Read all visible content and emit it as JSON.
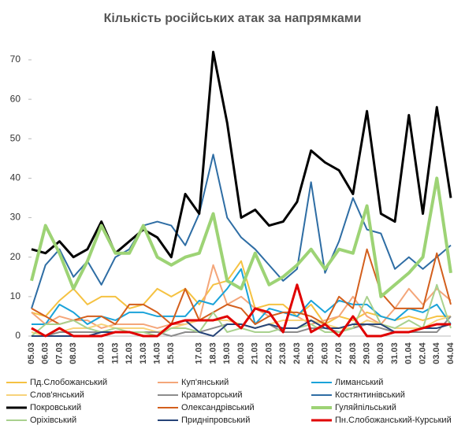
{
  "chart_data": {
    "type": "line",
    "title": "Кількість російських атак за напрямками",
    "categories": [
      "05.03",
      "06.03",
      "07.03",
      "08.03",
      null,
      "10.03",
      "11.03",
      "12.03",
      "13.03",
      "14.03",
      "15.03",
      null,
      "17.03",
      "18.03",
      "19.03",
      "20.03",
      "21.03",
      "22.03",
      "23.03",
      "24.03",
      "25.03",
      "26.03",
      "27.03",
      "28.03",
      "29.03",
      "30.03",
      "31.03",
      "01.04",
      "02.04",
      "03.04",
      "04.04"
    ],
    "ylim": [
      0,
      70
    ],
    "yticks": [
      0,
      10,
      20,
      30,
      40,
      50,
      60,
      70
    ],
    "grid": false,
    "series": [
      {
        "name": "Пд.Слобожанський",
        "color": "#f5c242",
        "values": [
          6,
          5,
          9,
          12,
          8,
          10,
          10,
          7,
          8,
          12,
          10,
          12,
          8,
          13,
          14,
          19,
          7,
          8,
          8,
          5,
          8,
          3,
          5,
          4,
          6,
          5,
          4,
          5,
          4,
          5,
          5
        ]
      },
      {
        "name": "Куп'янський",
        "color": "#f4a67a",
        "values": [
          6,
          3,
          5,
          4,
          4,
          2,
          3,
          3,
          3,
          2,
          3,
          3,
          4,
          18,
          8,
          10,
          7,
          5,
          6,
          5,
          3,
          4,
          5,
          10,
          5,
          3,
          7,
          12,
          8,
          12,
          9
        ]
      },
      {
        "name": "Лиманський",
        "color": "#1aa3d9",
        "values": [
          3,
          3,
          8,
          6,
          3,
          5,
          4,
          6,
          6,
          5,
          5,
          5,
          9,
          8,
          12,
          17,
          3,
          7,
          6,
          5,
          9,
          6,
          9,
          8,
          8,
          5,
          4,
          7,
          6,
          8,
          3
        ]
      },
      {
        "name": "Слов'янський",
        "color": "#f7d37b",
        "values": [
          1,
          0,
          1,
          2,
          2,
          3,
          2,
          2,
          2,
          1,
          2,
          3,
          4,
          4,
          4,
          3,
          2,
          3,
          4,
          4,
          4,
          3,
          2,
          2,
          4,
          3,
          2,
          2,
          2,
          4,
          5
        ]
      },
      {
        "name": "Краматорський",
        "color": "#8c8c8c",
        "values": [
          2,
          0,
          1,
          1,
          1,
          1,
          1,
          1,
          1,
          1,
          0,
          1,
          1,
          2,
          3,
          3,
          2,
          3,
          1,
          1,
          2,
          2,
          1,
          2,
          3,
          2,
          1,
          1,
          1,
          1,
          5
        ]
      },
      {
        "name": "Костянтинівський",
        "color": "#2e6da4",
        "values": [
          7,
          18,
          22,
          15,
          19,
          13,
          20,
          22,
          28,
          29,
          28,
          23,
          31,
          46,
          30,
          25,
          22,
          18,
          14,
          17,
          39,
          16,
          24,
          35,
          27,
          26,
          17,
          20,
          17,
          20,
          23
        ]
      },
      {
        "name": "Покровський",
        "color": "#000000",
        "values": [
          22,
          21,
          24,
          20,
          22,
          29,
          21,
          24,
          27,
          25,
          20,
          36,
          31,
          72,
          54,
          30,
          32,
          28,
          29,
          34,
          47,
          44,
          42,
          36,
          57,
          31,
          29,
          56,
          31,
          58,
          35
        ]
      },
      {
        "name": "Олександрівський",
        "color": "#d35f1d",
        "values": [
          7,
          5,
          3,
          4,
          5,
          5,
          3,
          8,
          8,
          6,
          3,
          12,
          4,
          6,
          8,
          7,
          3,
          5,
          6,
          6,
          5,
          3,
          10,
          7,
          22,
          11,
          7,
          7,
          7,
          21,
          8
        ]
      },
      {
        "name": "Гуляйпільський",
        "color": "#9dd375",
        "values": [
          14,
          28,
          21,
          12,
          19,
          28,
          21,
          21,
          28,
          20,
          18,
          20,
          21,
          31,
          14,
          12,
          21,
          13,
          15,
          18,
          22,
          17,
          22,
          21,
          33,
          10,
          13,
          16,
          20,
          40,
          16
        ]
      },
      {
        "name": "Оріхівський",
        "color": "#a9d18e",
        "values": [
          0,
          3,
          3,
          4,
          2,
          1,
          2,
          1,
          1,
          0,
          2,
          2,
          1,
          6,
          1,
          2,
          1,
          1,
          2,
          2,
          3,
          1,
          1,
          2,
          10,
          3,
          2,
          4,
          2,
          13,
          2
        ]
      },
      {
        "name": "Придніпровський",
        "color": "#264478",
        "values": [
          0,
          0,
          0,
          0,
          0,
          1,
          1,
          1,
          0,
          0,
          3,
          4,
          1,
          0,
          3,
          3,
          2,
          3,
          2,
          2,
          4,
          2,
          2,
          3,
          3,
          3,
          1,
          1,
          2,
          2,
          3
        ]
      },
      {
        "name": "Пн.Слобожанський-Курський",
        "color": "#e00000",
        "values": [
          2,
          0,
          2,
          0,
          0,
          0,
          1,
          1,
          0,
          0,
          3,
          4,
          4,
          4,
          5,
          2,
          7,
          6,
          1,
          13,
          1,
          3,
          0,
          5,
          0,
          0,
          1,
          1,
          2,
          3,
          3
        ]
      }
    ]
  }
}
